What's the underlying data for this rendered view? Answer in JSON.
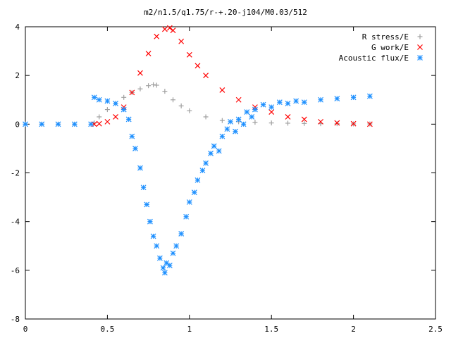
{
  "chart_data": {
    "type": "scatter",
    "title": "m2/n1.5/q1.75/r-+.20-j104/M0.03/512",
    "xlabel": "",
    "ylabel": "",
    "xlim": [
      0,
      2.5
    ],
    "ylim": [
      -8,
      4
    ],
    "x_ticks": [
      "0",
      "0.5",
      "1",
      "1.5",
      "2",
      "2.5"
    ],
    "y_ticks": [
      "4",
      "2",
      "0",
      "-2",
      "-4",
      "-6",
      "-8"
    ],
    "grid": false,
    "legend_position": "top-right",
    "series": [
      {
        "name": "R stress/E",
        "marker": "plus",
        "color": "#a0a0a0",
        "x": [
          0.0,
          0.1,
          0.2,
          0.3,
          0.42,
          0.45,
          0.5,
          0.55,
          0.6,
          0.65,
          0.7,
          0.75,
          0.78,
          0.8,
          0.85,
          0.9,
          0.95,
          1.0,
          1.1,
          1.2,
          1.3,
          1.4,
          1.5,
          1.6,
          1.7,
          1.8,
          1.9,
          2.0,
          2.1
        ],
        "y": [
          0,
          0,
          0,
          0,
          0.05,
          0.3,
          0.6,
          0.85,
          1.1,
          1.3,
          1.45,
          1.58,
          1.62,
          1.6,
          1.35,
          1.0,
          0.75,
          0.55,
          0.3,
          0.15,
          0.1,
          0.08,
          0.05,
          0.04,
          0.03,
          0.02,
          0.02,
          0.01,
          0.01
        ]
      },
      {
        "name": "G work/E",
        "marker": "cross",
        "color": "#ff0000",
        "x": [
          0.42,
          0.45,
          0.5,
          0.55,
          0.6,
          0.65,
          0.7,
          0.75,
          0.8,
          0.85,
          0.88,
          0.9,
          0.95,
          1.0,
          1.05,
          1.1,
          1.2,
          1.3,
          1.4,
          1.5,
          1.6,
          1.7,
          1.8,
          1.9,
          2.0,
          2.1
        ],
        "y": [
          0,
          0.02,
          0.1,
          0.3,
          0.7,
          1.3,
          2.1,
          2.9,
          3.6,
          3.9,
          3.95,
          3.85,
          3.4,
          2.85,
          2.4,
          2.0,
          1.4,
          1.0,
          0.7,
          0.5,
          0.3,
          0.2,
          0.1,
          0.05,
          0.02,
          0.0
        ]
      },
      {
        "name": "Acoustic flux/E",
        "marker": "star",
        "color": "#1e90ff",
        "x": [
          0.0,
          0.1,
          0.2,
          0.3,
          0.4,
          0.42,
          0.45,
          0.5,
          0.55,
          0.6,
          0.63,
          0.65,
          0.67,
          0.7,
          0.72,
          0.74,
          0.76,
          0.78,
          0.8,
          0.82,
          0.84,
          0.85,
          0.86,
          0.88,
          0.9,
          0.92,
          0.95,
          0.98,
          1.0,
          1.03,
          1.05,
          1.08,
          1.1,
          1.13,
          1.15,
          1.18,
          1.2,
          1.23,
          1.25,
          1.28,
          1.3,
          1.33,
          1.35,
          1.38,
          1.4,
          1.45,
          1.5,
          1.55,
          1.6,
          1.65,
          1.7,
          1.8,
          1.9,
          2.0,
          2.1
        ],
        "y": [
          0,
          0,
          0,
          0,
          0,
          1.1,
          1.0,
          0.95,
          0.85,
          0.6,
          0.2,
          -0.5,
          -1.0,
          -1.8,
          -2.6,
          -3.3,
          -4.0,
          -4.6,
          -5.0,
          -5.5,
          -5.9,
          -6.1,
          -5.7,
          -5.8,
          -5.3,
          -5.0,
          -4.5,
          -3.8,
          -3.2,
          -2.8,
          -2.3,
          -1.9,
          -1.6,
          -1.2,
          -0.9,
          -1.1,
          -0.5,
          -0.2,
          0.1,
          -0.3,
          0.2,
          0.0,
          0.5,
          0.3,
          0.6,
          0.8,
          0.7,
          0.9,
          0.85,
          0.95,
          0.9,
          1.0,
          1.05,
          1.1,
          1.15
        ]
      }
    ]
  }
}
